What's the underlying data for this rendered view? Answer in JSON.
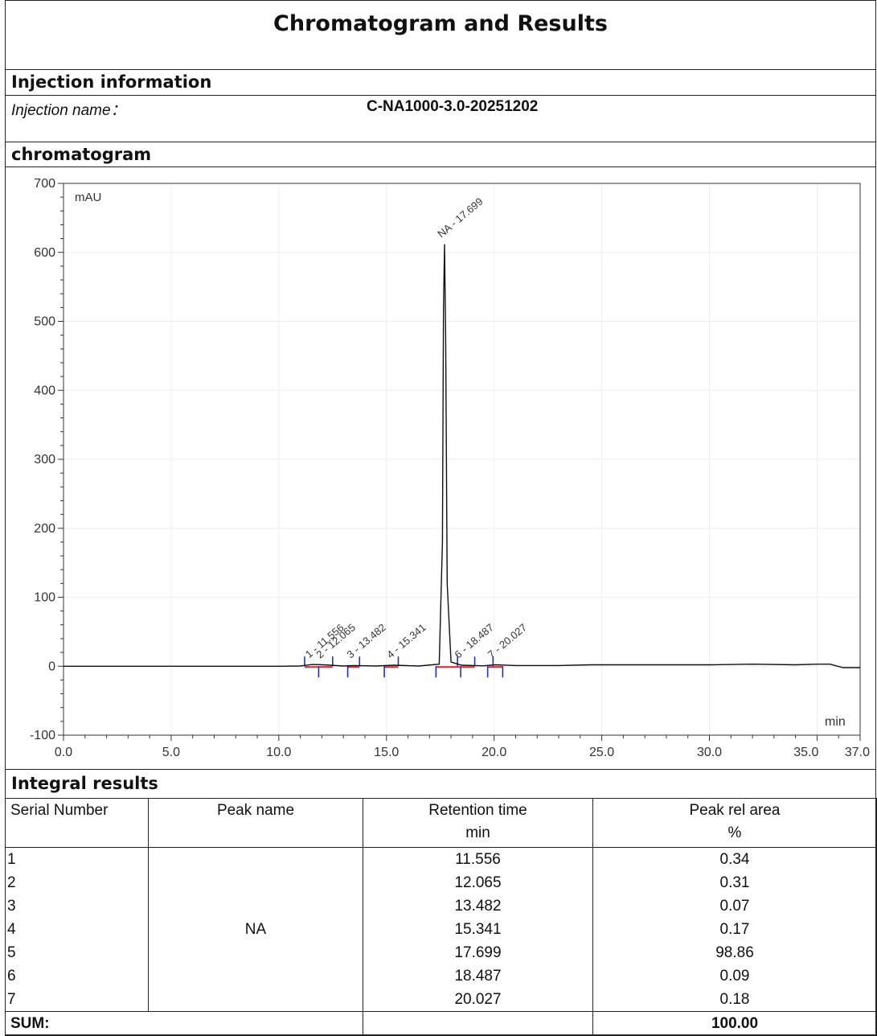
{
  "header": {
    "title": "Chromatogram and Results"
  },
  "injection": {
    "section_label": "Injection information",
    "name_label": "Injection name：",
    "name_value": "C-NA1000-3.0-20251202"
  },
  "chromatogram": {
    "section_label": "chromatogram"
  },
  "chart_data": {
    "type": "line",
    "ylabel": "mAU",
    "xlabel": "min",
    "xlim": [
      0,
      37.0
    ],
    "ylim": [
      -100,
      700
    ],
    "x_ticks": [
      0,
      5,
      10,
      15,
      20,
      25,
      30,
      35,
      37
    ],
    "x_tick_labels": [
      "0.0",
      "5.0",
      "10.0",
      "15.0",
      "20.0",
      "25.0",
      "30.0",
      "35.0",
      "37.0"
    ],
    "y_ticks": [
      -100,
      0,
      100,
      200,
      300,
      400,
      500,
      600,
      700
    ],
    "y_tick_labels": [
      "-100",
      "0",
      "100",
      "200",
      "300",
      "400",
      "500",
      "600",
      "700"
    ],
    "peak_labels": [
      {
        "text": "1 - 11.556",
        "x": 11.556
      },
      {
        "text": "2 - 12.065",
        "x": 12.065
      },
      {
        "text": "3 - 13.482",
        "x": 13.482
      },
      {
        "text": "4 - 15.341",
        "x": 15.341
      },
      {
        "text": "NA - 17.699",
        "x": 17.699
      },
      {
        "text": "6 - 18.487",
        "x": 18.487
      },
      {
        "text": "7 - 20.027",
        "x": 20.027
      }
    ],
    "signal": {
      "x": [
        0,
        10,
        11.0,
        11.556,
        12.065,
        13.0,
        13.482,
        14.5,
        15.341,
        16.5,
        17.45,
        17.6,
        17.65,
        17.699,
        17.75,
        17.82,
        18.0,
        18.487,
        19.5,
        20.027,
        21,
        23,
        24.5,
        26,
        28,
        30,
        32,
        34,
        35.0,
        35.6,
        36.2,
        37.0
      ],
      "y": [
        0,
        0,
        0.3,
        2.5,
        2.0,
        0.3,
        1.0,
        0.3,
        1.5,
        0.3,
        3,
        180,
        520,
        612,
        480,
        120,
        6,
        1.5,
        0.5,
        2.0,
        1,
        1,
        2,
        2,
        2,
        2,
        3,
        2,
        3,
        3,
        -2,
        -2
      ]
    },
    "baseline_segments": [
      [
        11.2,
        11.85
      ],
      [
        11.85,
        12.5
      ],
      [
        13.2,
        13.75
      ],
      [
        14.9,
        15.55
      ],
      [
        17.3,
        18.3
      ],
      [
        18.3,
        19.1
      ],
      [
        19.7,
        20.4
      ]
    ],
    "peak_marks": [
      11.2,
      11.85,
      12.5,
      13.2,
      13.75,
      14.9,
      15.55,
      17.3,
      18.3,
      18.45,
      19.1,
      19.7,
      19.95,
      20.4
    ]
  },
  "results": {
    "section_label": "Integral results",
    "headers": {
      "serial": "Serial Number",
      "peak": "Peak name",
      "rt": "Retention time",
      "rt_unit": "min",
      "area": "Peak rel area",
      "area_unit": "%"
    },
    "peak_name": "NA",
    "serials": [
      "1",
      "2",
      "3",
      "4",
      "5",
      "6",
      "7"
    ],
    "retention_times": [
      "11.556",
      "12.065",
      "13.482",
      "15.341",
      "17.699",
      "18.487",
      "20.027"
    ],
    "areas": [
      "0.34",
      "0.31",
      "0.07",
      "0.17",
      "98.86",
      "0.09",
      "0.18"
    ],
    "sum_label": "SUM:",
    "sum_value": "100.00"
  }
}
